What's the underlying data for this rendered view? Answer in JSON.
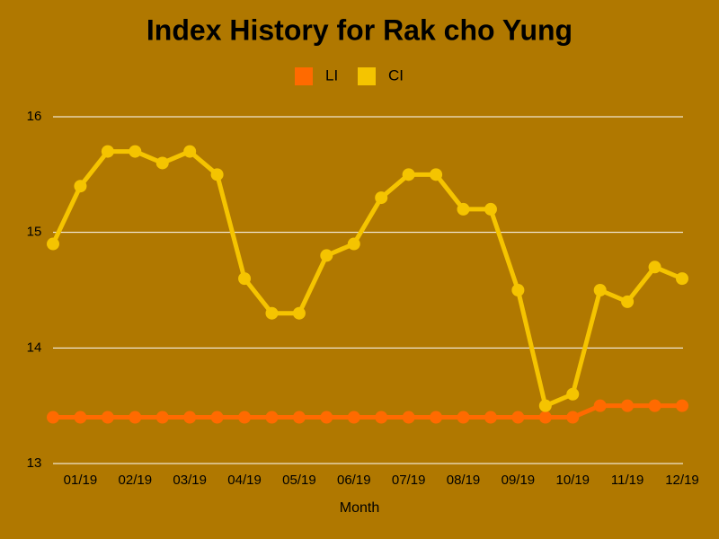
{
  "chart_data": {
    "type": "line",
    "title": "Index History for Rak cho  Yung",
    "x_label": "Month",
    "categories": [
      null,
      "01/19",
      null,
      "02/19",
      null,
      "03/19",
      null,
      "04/19",
      null,
      "05/19",
      null,
      "06/19",
      null,
      "07/19",
      null,
      "08/19",
      null,
      "09/19",
      null,
      "10/19",
      null,
      "11/19",
      null,
      "12/19"
    ],
    "series": [
      {
        "name": "LI",
        "color": "#ff6a00",
        "values": [
          13.4,
          13.4,
          13.4,
          13.4,
          13.4,
          13.4,
          13.4,
          13.4,
          13.4,
          13.4,
          13.4,
          13.4,
          13.4,
          13.4,
          13.4,
          13.4,
          13.4,
          13.4,
          13.4,
          13.4,
          13.5,
          13.5,
          13.5,
          13.5
        ]
      },
      {
        "name": "CI",
        "color": "#f5c400",
        "values": [
          14.9,
          15.4,
          15.7,
          15.7,
          15.6,
          15.7,
          15.5,
          14.6,
          14.3,
          14.3,
          14.8,
          14.9,
          15.3,
          15.5,
          15.5,
          15.2,
          15.2,
          14.5,
          13.5,
          13.6,
          14.5,
          14.4,
          14.7,
          14.6
        ]
      }
    ],
    "ylim": [
      13,
      16
    ],
    "yticks": [
      13,
      14,
      15,
      16
    ],
    "grid": true,
    "legend": "top"
  }
}
